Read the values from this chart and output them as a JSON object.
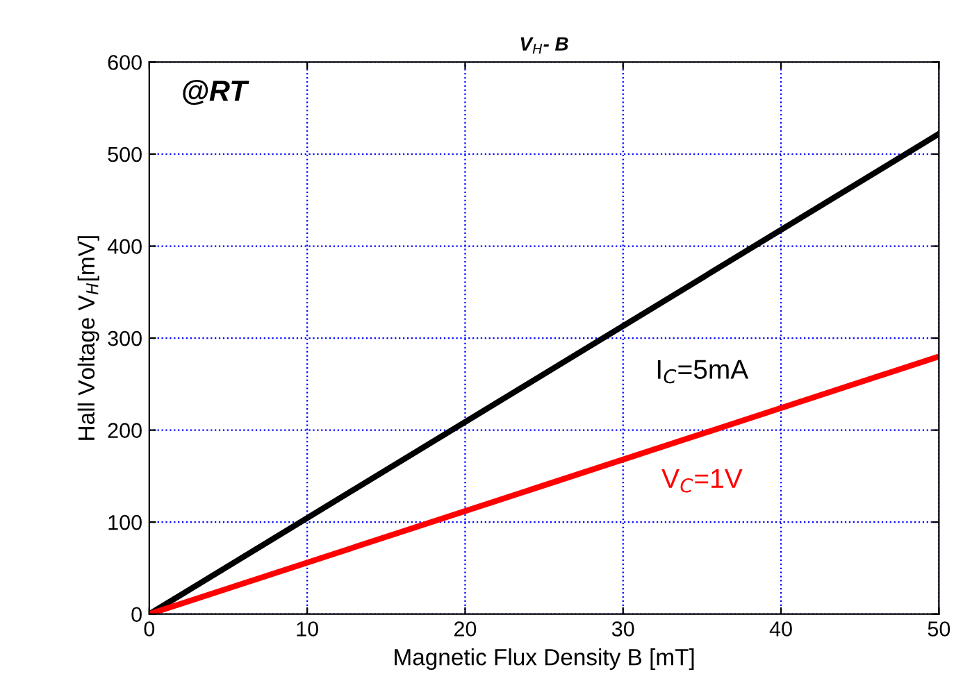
{
  "chart_data": {
    "type": "line",
    "title": "V$_{H}$- B",
    "xlabel": "Magnetic Flux Density B [mT]",
    "ylabel": "Hall Voltage V$_{H}$[mV]",
    "x": [
      0,
      50
    ],
    "series": [
      {
        "name": "I$_{C}$=5mA",
        "color": "#000000",
        "values": [
          0,
          522
        ]
      },
      {
        "name": "V$_{C}$=1V",
        "color": "#ff0000",
        "values": [
          0,
          280
        ]
      }
    ],
    "annotations": [
      "@RT"
    ],
    "xlim": [
      0,
      50
    ],
    "xticks": [
      0,
      10,
      20,
      30,
      40,
      50
    ],
    "ylim": [
      0,
      600
    ],
    "yticks": [
      0,
      100,
      200,
      300,
      400,
      500,
      600
    ],
    "grid": true,
    "legend": false,
    "marker": "none",
    "line_style": "solid"
  }
}
